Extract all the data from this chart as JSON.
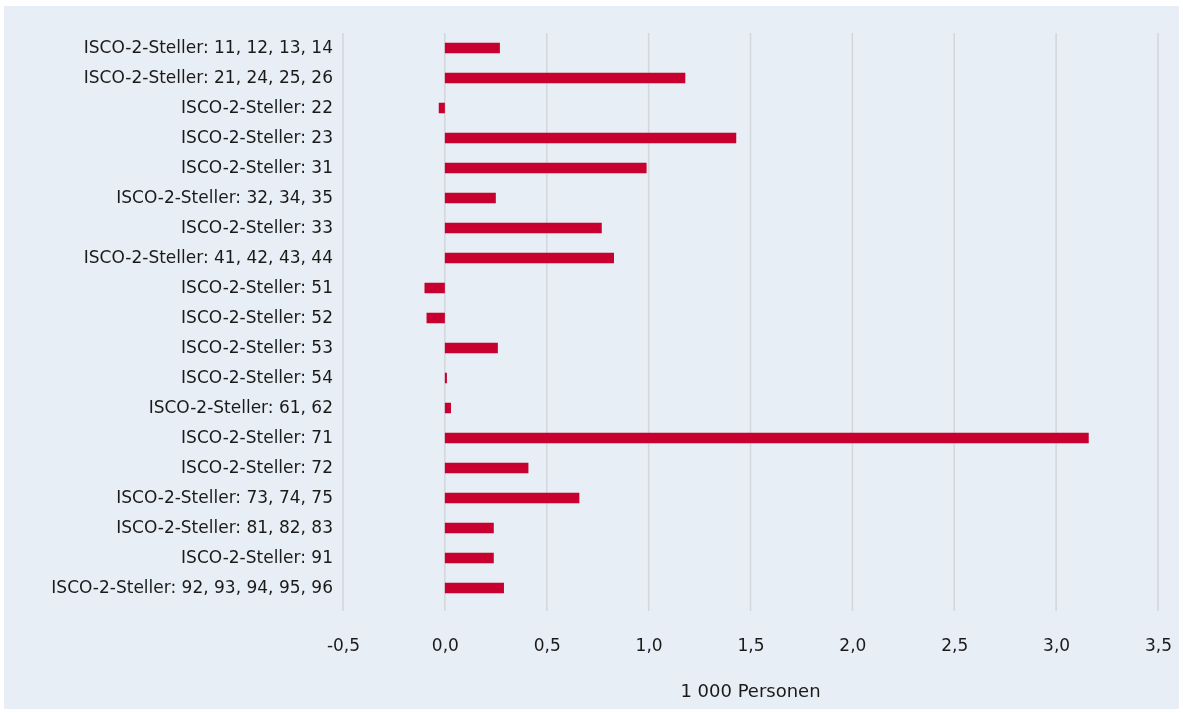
{
  "chart_data": {
    "type": "bar",
    "orientation": "horizontal",
    "xlabel": "1 000 Personen",
    "categories": [
      "ISCO-2-Steller: 11, 12, 13, 14",
      "ISCO-2-Steller: 21, 24, 25, 26",
      "ISCO-2-Steller: 22",
      "ISCO-2-Steller: 23",
      "ISCO-2-Steller: 31",
      "ISCO-2-Steller: 32, 34, 35",
      "ISCO-2-Steller: 33",
      "ISCO-2-Steller: 41, 42, 43, 44",
      "ISCO-2-Steller: 51",
      "ISCO-2-Steller: 52",
      "ISCO-2-Steller: 53",
      "ISCO-2-Steller: 54",
      "ISCO-2-Steller: 61, 62",
      "ISCO-2-Steller: 71",
      "ISCO-2-Steller: 72",
      "ISCO-2-Steller: 73, 74, 75",
      "ISCO-2-Steller: 81, 82, 83",
      "ISCO-2-Steller: 91",
      "ISCO-2-Steller: 92, 93, 94, 95, 96"
    ],
    "values": [
      0.27,
      1.18,
      -0.03,
      1.43,
      0.99,
      0.25,
      0.77,
      0.83,
      -0.1,
      -0.09,
      0.26,
      0.01,
      0.03,
      3.16,
      0.41,
      0.66,
      0.24,
      0.24,
      0.29
    ],
    "color": "#c8002f",
    "xlim": [
      -0.5,
      3.5
    ],
    "xticks": [
      {
        "value": -0.5,
        "label": "-0,5"
      },
      {
        "value": 0,
        "label": "0,0"
      },
      {
        "value": 0.5,
        "label": "0,5"
      },
      {
        "value": 1,
        "label": "1,0"
      },
      {
        "value": 1.5,
        "label": "1,5"
      },
      {
        "value": 2,
        "label": "2,0"
      },
      {
        "value": 2.5,
        "label": "2,5"
      },
      {
        "value": 3,
        "label": "3,0"
      },
      {
        "value": 3.5,
        "label": "3,5"
      }
    ],
    "grid": "x"
  }
}
